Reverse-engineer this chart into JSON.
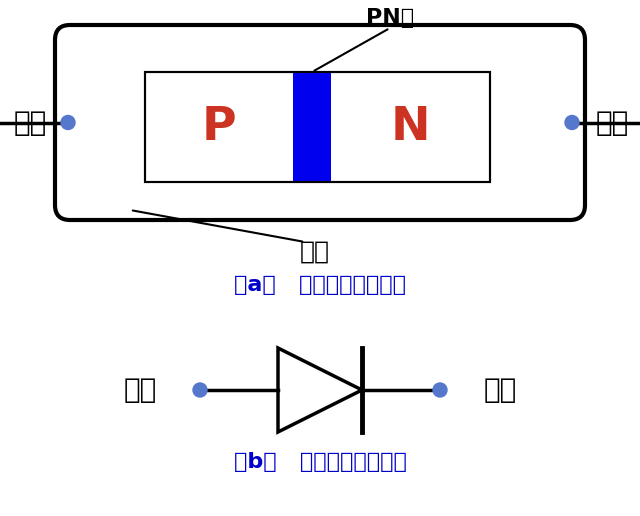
{
  "bg_color": "#ffffff",
  "black": "#000000",
  "blue_dot": "#5577cc",
  "blue_pn": "#0000ee",
  "red_text": "#cc3322",
  "caption_color": "#0000cc",
  "fig_width": 6.4,
  "fig_height": 5.16,
  "label_zhengji": "正极",
  "label_fuji": "负极",
  "label_P": "P",
  "label_N": "N",
  "label_PN": "PN结",
  "label_waike": "外壳",
  "caption_a": "（a）   二极管结构示意图",
  "caption_b": "（b）   二极管的电路符号"
}
